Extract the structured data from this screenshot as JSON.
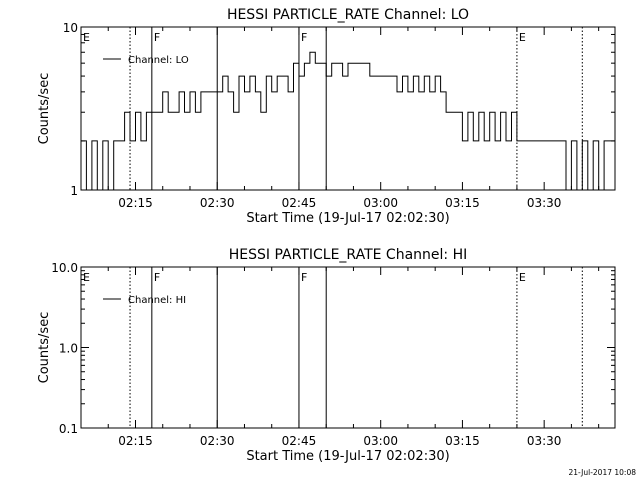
{
  "footer": {
    "timestamp": "21-Jul-2017 10:08"
  },
  "chart_data": [
    {
      "type": "line",
      "title": "HESSI PARTICLE_RATE Channel: LO",
      "xlabel": "Start Time (19-Jul-17 02:02:30)",
      "ylabel": "Counts/sec",
      "yscale": "log",
      "xlim": [
        "02:05",
        "03:43"
      ],
      "ylim": [
        1,
        10
      ],
      "x_ticks": [
        "02:15",
        "02:30",
        "02:45",
        "03:00",
        "03:15",
        "03:30"
      ],
      "y_ticks": [
        {
          "value": 1,
          "label": "1"
        },
        {
          "value": 10,
          "label": "10"
        }
      ],
      "legend": {
        "position": "top-left",
        "entries": [
          "Channel: LO"
        ]
      },
      "series": [
        {
          "name": "Channel: LO",
          "color": "#000000",
          "x": [
            "02:05",
            "02:06",
            "02:07",
            "02:08",
            "02:09",
            "02:10",
            "02:11",
            "02:12",
            "02:13",
            "02:14",
            "02:15",
            "02:16",
            "02:17",
            "02:18",
            "02:19",
            "02:20",
            "02:21",
            "02:22",
            "02:23",
            "02:24",
            "02:25",
            "02:26",
            "02:27",
            "02:28",
            "02:29",
            "02:30",
            "02:31",
            "02:32",
            "02:33",
            "02:34",
            "02:35",
            "02:36",
            "02:37",
            "02:38",
            "02:39",
            "02:40",
            "02:41",
            "02:42",
            "02:43",
            "02:44",
            "02:45",
            "02:46",
            "02:47",
            "02:48",
            "02:49",
            "02:50",
            "02:51",
            "02:52",
            "02:53",
            "02:54",
            "02:55",
            "02:56",
            "02:57",
            "02:58",
            "02:59",
            "03:00",
            "03:01",
            "03:02",
            "03:03",
            "03:04",
            "03:05",
            "03:06",
            "03:07",
            "03:08",
            "03:09",
            "03:10",
            "03:11",
            "03:12",
            "03:13",
            "03:14",
            "03:15",
            "03:16",
            "03:17",
            "03:18",
            "03:19",
            "03:20",
            "03:21",
            "03:22",
            "03:23",
            "03:24",
            "03:25",
            "03:26",
            "03:27",
            "03:28",
            "03:29",
            "03:30",
            "03:31",
            "03:32",
            "03:33",
            "03:34",
            "03:35",
            "03:36",
            "03:37",
            "03:38",
            "03:39",
            "03:40",
            "03:41",
            "03:42",
            "03:43"
          ],
          "values": [
            2,
            1,
            2,
            1,
            2,
            1,
            2,
            2,
            3,
            2,
            3,
            2,
            3,
            3,
            3,
            4,
            3,
            3,
            4,
            3,
            4,
            3,
            4,
            4,
            4,
            4,
            5,
            4,
            3,
            5,
            4,
            5,
            4,
            3,
            5,
            4,
            5,
            5,
            4,
            6,
            5,
            6,
            7,
            6,
            6,
            5,
            6,
            6,
            5,
            6,
            6,
            6,
            6,
            5,
            5,
            5,
            5,
            5,
            4,
            5,
            4,
            5,
            4,
            5,
            4,
            5,
            4,
            3,
            3,
            3,
            2,
            3,
            2,
            3,
            2,
            3,
            2,
            3,
            2,
            3,
            2,
            2,
            2,
            2,
            2,
            2,
            2,
            2,
            2,
            1,
            2,
            1,
            2,
            1,
            2,
            1,
            2,
            2,
            2
          ]
        }
      ],
      "annotations": [
        {
          "label": "E",
          "x": "02:05",
          "style": "dotted"
        },
        {
          "label": "",
          "x": "02:14",
          "style": "dotted"
        },
        {
          "label": "F",
          "x": "02:18",
          "style": "solid"
        },
        {
          "label": "",
          "x": "02:30",
          "style": "solid"
        },
        {
          "label": "F",
          "x": "02:45",
          "style": "solid"
        },
        {
          "label": "",
          "x": "02:50",
          "style": "solid"
        },
        {
          "label": "E",
          "x": "03:25",
          "style": "dotted"
        },
        {
          "label": "",
          "x": "03:37",
          "style": "dotted"
        }
      ]
    },
    {
      "type": "line",
      "title": "HESSI PARTICLE_RATE Channel: HI",
      "xlabel": "Start Time (19-Jul-17 02:02:30)",
      "ylabel": "Counts/sec",
      "yscale": "log",
      "xlim": [
        "02:05",
        "03:43"
      ],
      "ylim": [
        0.1,
        10
      ],
      "x_ticks": [
        "02:15",
        "02:30",
        "02:45",
        "03:00",
        "03:15",
        "03:30"
      ],
      "y_ticks": [
        {
          "value": 0.1,
          "label": "0.1"
        },
        {
          "value": 1,
          "label": "1.0"
        },
        {
          "value": 10,
          "label": "10.0"
        }
      ],
      "legend": {
        "position": "top-left",
        "entries": [
          "Channel: HI"
        ]
      },
      "series": [
        {
          "name": "Channel: HI",
          "color": "#000000",
          "x": [],
          "values": []
        }
      ],
      "annotations": [
        {
          "label": "E",
          "x": "02:05",
          "style": "dotted"
        },
        {
          "label": "",
          "x": "02:14",
          "style": "dotted"
        },
        {
          "label": "F",
          "x": "02:18",
          "style": "solid"
        },
        {
          "label": "",
          "x": "02:30",
          "style": "solid"
        },
        {
          "label": "F",
          "x": "02:45",
          "style": "solid"
        },
        {
          "label": "",
          "x": "02:50",
          "style": "solid"
        },
        {
          "label": "E",
          "x": "03:25",
          "style": "dotted"
        },
        {
          "label": "",
          "x": "03:37",
          "style": "dotted"
        }
      ]
    }
  ]
}
